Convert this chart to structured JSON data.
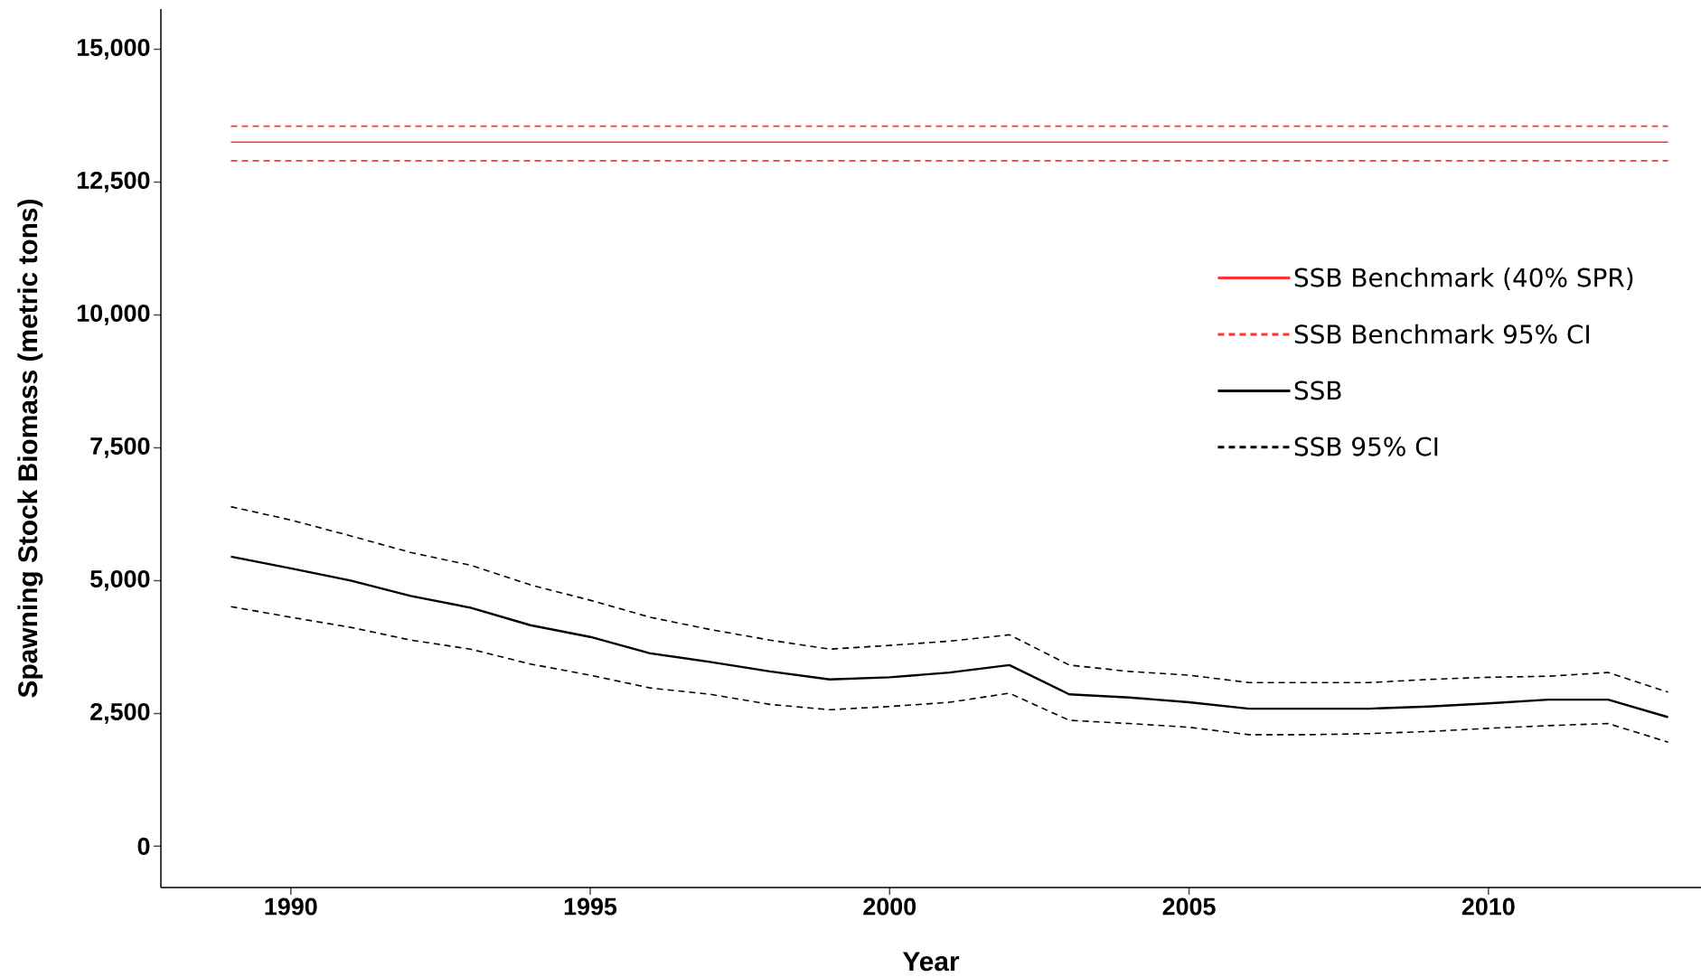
{
  "chart_data": {
    "type": "line",
    "xlabel": "Year",
    "ylabel": "Spawning Stock Biomass (metric tons)",
    "x": [
      1989,
      1990,
      1991,
      1992,
      1993,
      1994,
      1995,
      1996,
      1997,
      1998,
      1999,
      2000,
      2001,
      2002,
      2003,
      2004,
      2005,
      2006,
      2007,
      2008,
      2009,
      2010,
      2011,
      2012,
      2013
    ],
    "series": [
      {
        "name": "SSB Benchmark (40% SPR)",
        "color": "#ff3333",
        "line_style": "solid",
        "values": [
          13250,
          13250,
          13250,
          13250,
          13250,
          13250,
          13250,
          13250,
          13250,
          13250,
          13250,
          13250,
          13250,
          13250,
          13250,
          13250,
          13250,
          13250,
          13250,
          13250,
          13250,
          13250,
          13250,
          13250,
          13250
        ]
      },
      {
        "name": "SSB Benchmark 95% CI",
        "color": "#ff3333",
        "line_style": "dashed",
        "values": [
          13550,
          13550,
          13550,
          13550,
          13550,
          13550,
          13550,
          13550,
          13550,
          13550,
          13550,
          13550,
          13550,
          13550,
          13550,
          13550,
          13550,
          13550,
          13550,
          13550,
          13550,
          13550,
          13550,
          13550,
          13550
        ]
      },
      {
        "color": "#ff3333",
        "line_style": "dashed",
        "values": [
          12900,
          12900,
          12900,
          12900,
          12900,
          12900,
          12900,
          12900,
          12900,
          12900,
          12900,
          12900,
          12900,
          12900,
          12900,
          12900,
          12900,
          12900,
          12900,
          12900,
          12900,
          12900,
          12900,
          12900,
          12900
        ]
      },
      {
        "name": "SSB",
        "color": "#000000",
        "line_style": "solid",
        "values": [
          5450,
          5230,
          5000,
          4710,
          4490,
          4160,
          3940,
          3630,
          3470,
          3290,
          3140,
          3180,
          3270,
          3410,
          2860,
          2800,
          2710,
          2590,
          2590,
          2590,
          2630,
          2690,
          2760,
          2760,
          2430
        ]
      },
      {
        "name": "SSB 95% CI",
        "color": "#000000",
        "line_style": "dashed",
        "values": [
          6390,
          6140,
          5840,
          5530,
          5290,
          4920,
          4630,
          4310,
          4080,
          3880,
          3710,
          3780,
          3860,
          3980,
          3410,
          3290,
          3220,
          3080,
          3080,
          3080,
          3140,
          3180,
          3200,
          3270,
          2900
        ]
      },
      {
        "color": "#000000",
        "line_style": "dashed",
        "values": [
          4510,
          4310,
          4120,
          3880,
          3710,
          3430,
          3220,
          2980,
          2860,
          2670,
          2570,
          2630,
          2710,
          2880,
          2370,
          2310,
          2240,
          2100,
          2100,
          2120,
          2160,
          2220,
          2270,
          2310,
          1960
        ]
      }
    ],
    "xlim": [
      1987.83,
      2013.55
    ],
    "ylim": [
      -776,
      15755
    ],
    "xticks": [
      1990,
      1995,
      2000,
      2005,
      2010
    ],
    "yticks": [
      0,
      {
        "value": 2500,
        "label": "2,500"
      },
      {
        "value": 5000,
        "label": "5,000"
      },
      {
        "value": 7500,
        "label": "7,500"
      },
      {
        "value": 10000,
        "label": "10,000"
      },
      {
        "value": 12500,
        "label": "12,500"
      },
      {
        "value": 15000,
        "label": "15,000"
      }
    ],
    "grid": false,
    "legend": "right",
    "marker": "none"
  }
}
